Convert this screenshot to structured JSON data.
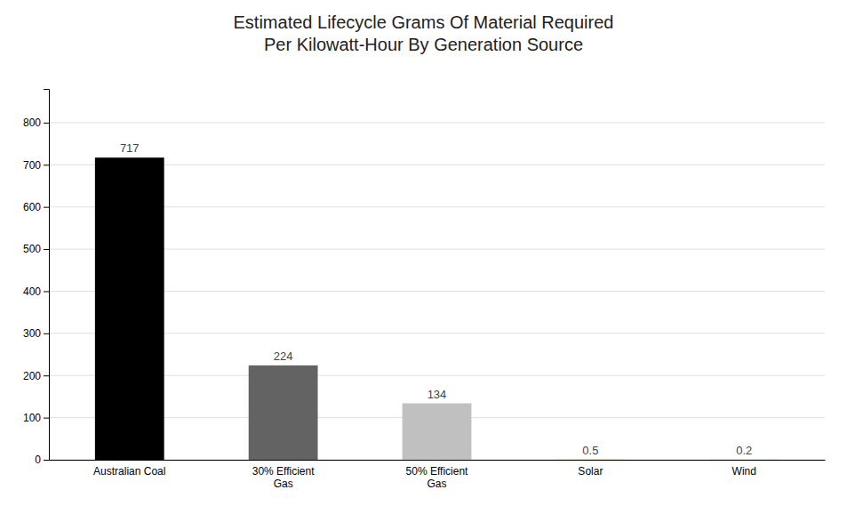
{
  "chart_data": {
    "type": "bar",
    "title": "Estimated Lifecycle Grams Of Material Required\nPer Kilowatt-Hour By Generation Source",
    "categories": [
      "Australian Coal",
      "30% Efficient\nGas",
      "50% Efficient\nGas",
      "Solar",
      "Wind"
    ],
    "values": [
      717,
      224,
      134,
      0.5,
      0.2
    ],
    "colors": [
      "#000000",
      "#636363",
      "#c0c0c0",
      "#d4b800",
      "#1e7e1e"
    ],
    "ylim": [
      0,
      880
    ],
    "yticks": [
      0,
      100,
      200,
      300,
      400,
      500,
      600,
      700,
      800
    ],
    "grid": true,
    "data_labels": true
  }
}
